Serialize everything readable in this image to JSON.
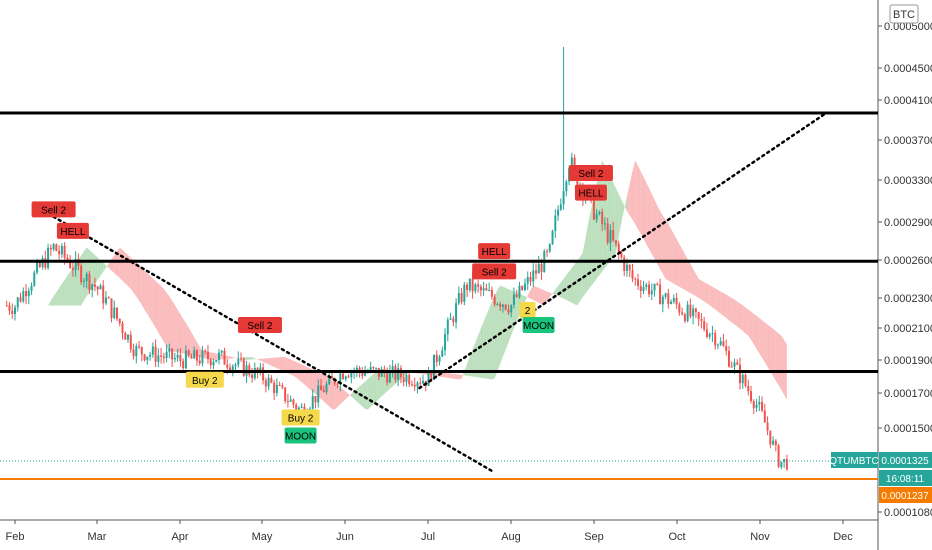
{
  "chart_data": {
    "type": "candlestick",
    "symbol_label": "QTUMBTC",
    "currency_label": "BTC",
    "last_price_label": "0.0001325",
    "countdown_label": "16:08:11",
    "line_price_label": "0.0001237",
    "x_ticks": [
      "Feb",
      "Mar",
      "Apr",
      "May",
      "Jun",
      "Jul",
      "Aug",
      "Sep",
      "Oct",
      "Nov",
      "Dec"
    ],
    "y_ticks": [
      "0.0005000",
      "0.0004500",
      "0.0004100",
      "0.0003700",
      "0.0003300",
      "0.0002900",
      "0.0002600",
      "0.0002300",
      "0.0002100",
      "0.0001900",
      "0.0001700",
      "0.0001500",
      "0.0001325",
      "0.0001237",
      "0.0001080"
    ],
    "horizontal_lines": [
      0.000397,
      0.000259,
      0.000183
    ],
    "orange_line": 0.0001237,
    "trend_lines": [
      {
        "from": [
          "Feb 15",
          0.000295
        ],
        "to": [
          "Jul 25",
          0.000127
        ],
        "style": "dotted"
      },
      {
        "from": [
          "Jun 28",
          0.000173
        ],
        "to": [
          "Nov 25",
          0.000397
        ],
        "style": "dotted"
      }
    ],
    "markers": [
      {
        "label": "Sell 2",
        "type": "sell",
        "date": "Feb 15",
        "price": 0.000302
      },
      {
        "label": "HELL",
        "type": "hell",
        "date": "Feb 22",
        "price": 0.000283
      },
      {
        "label": "Sell 2",
        "type": "sell",
        "date": "Apr 30",
        "price": 0.000212
      },
      {
        "label": "Buy 2",
        "type": "buy",
        "date": "Apr 10",
        "price": 0.000178
      },
      {
        "label": "Buy 2",
        "type": "buy",
        "date": "May 15",
        "price": 0.000156
      },
      {
        "label": "MOON",
        "type": "moon",
        "date": "May 15",
        "price": 0.000146
      },
      {
        "label": "HELL",
        "type": "hell",
        "date": "Jul 25",
        "price": 0.000267
      },
      {
        "label": "Sell 2",
        "type": "sell",
        "date": "Jul 25",
        "price": 0.000251
      },
      {
        "label": "2",
        "type": "buy",
        "date": "Aug 7",
        "price": 0.000222
      },
      {
        "label": "MOON",
        "type": "moon",
        "date": "Aug 11",
        "price": 0.000212
      },
      {
        "label": "Sell 2",
        "type": "sell",
        "date": "Aug 30",
        "price": 0.000337
      },
      {
        "label": "HELL",
        "type": "hell",
        "date": "Aug 30",
        "price": 0.000318
      }
    ],
    "ohlc_sample": [
      {
        "date": "Feb 1",
        "close": 0.000225
      },
      {
        "date": "Feb 15",
        "close": 0.00027
      },
      {
        "date": "Mar 1",
        "close": 0.000238
      },
      {
        "date": "Mar 15",
        "close": 0.000196
      },
      {
        "date": "Apr 1",
        "close": 0.00019
      },
      {
        "date": "Apr 15",
        "close": 0.000192
      },
      {
        "date": "May 1",
        "close": 0.00018
      },
      {
        "date": "May 15",
        "close": 0.00016
      },
      {
        "date": "Jun 1",
        "close": 0.000184
      },
      {
        "date": "Jun 15",
        "close": 0.000182
      },
      {
        "date": "Jul 1",
        "close": 0.000178
      },
      {
        "date": "Jul 15",
        "close": 0.00024
      },
      {
        "date": "Aug 1",
        "close": 0.000225
      },
      {
        "date": "Aug 15",
        "close": 0.000265
      },
      {
        "date": "Aug 22",
        "close": 0.00035
      },
      {
        "date": "Sep 1",
        "close": 0.0003
      },
      {
        "date": "Sep 15",
        "close": 0.000245
      },
      {
        "date": "Oct 1",
        "close": 0.000225
      },
      {
        "date": "Oct 15",
        "close": 0.000205
      },
      {
        "date": "Nov 1",
        "close": 0.00016
      },
      {
        "date": "Nov 8",
        "close": 0.000132
      }
    ],
    "colors": {
      "bull": "#26a69a",
      "bear": "#ef5350",
      "cloud_bull": "#a5d6a7",
      "cloud_bear": "#f8a5a5",
      "sell_tag": "#e53935",
      "buy_tag": "#f5d94a",
      "moon_tag": "#1bc47d",
      "orange": "#f57c00",
      "symbol_tag": "#26a69a"
    }
  }
}
